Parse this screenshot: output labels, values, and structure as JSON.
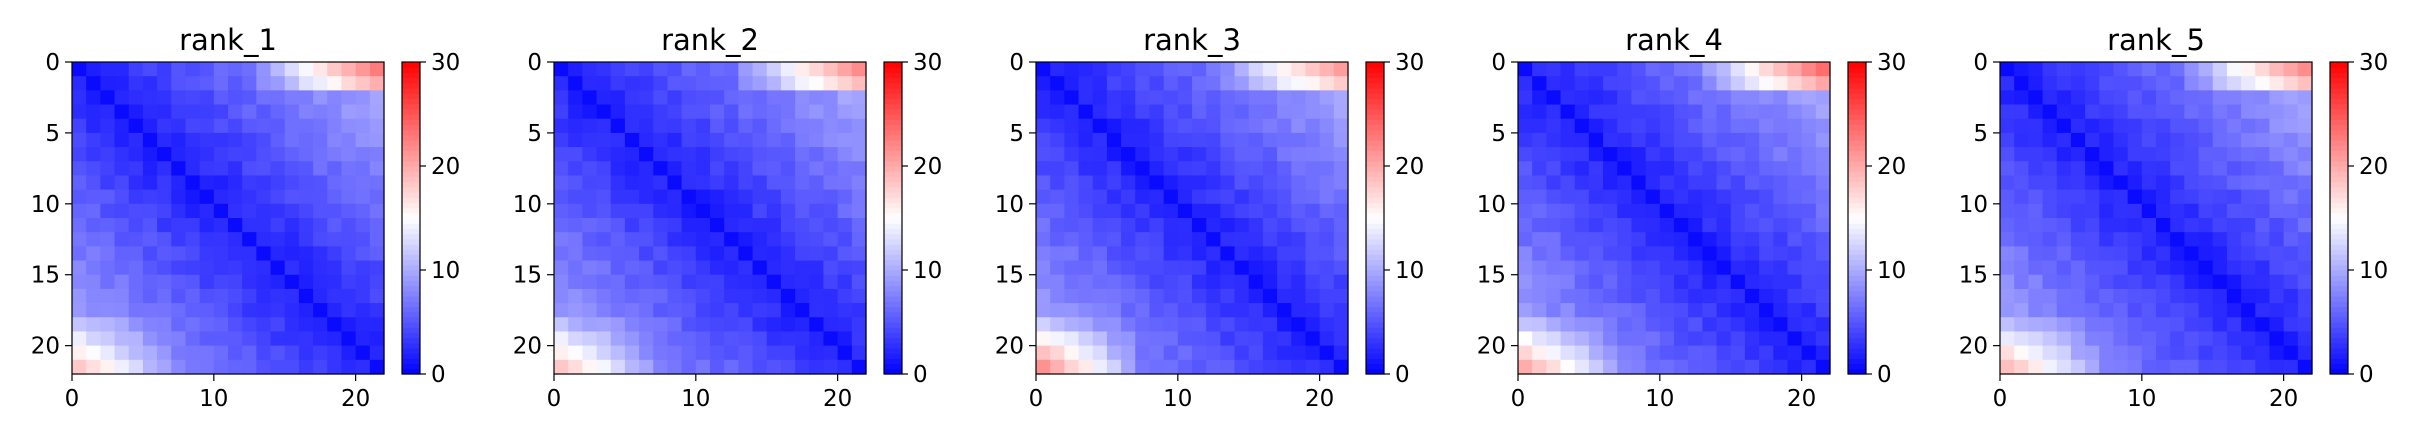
{
  "chart_data": [
    {
      "type": "heatmap",
      "title": "rank_1",
      "size": 22,
      "xticks": [
        0,
        10,
        20
      ],
      "yticks": [
        0,
        5,
        10,
        15,
        20
      ],
      "colorbar": {
        "ticks": [
          0,
          10,
          20,
          30
        ],
        "range": [
          0,
          30
        ],
        "cmap": "bwr"
      },
      "seed": 11,
      "edge": {
        "top_right": 24,
        "bottom_left": 20
      }
    },
    {
      "type": "heatmap",
      "title": "rank_2",
      "size": 22,
      "xticks": [
        0,
        10,
        20
      ],
      "yticks": [
        0,
        5,
        10,
        15,
        20
      ],
      "colorbar": {
        "ticks": [
          0,
          10,
          20,
          30
        ],
        "range": [
          0,
          30
        ],
        "cmap": "bwr"
      },
      "seed": 23,
      "edge": {
        "top_right": 23,
        "bottom_left": 20
      }
    },
    {
      "type": "heatmap",
      "title": "rank_3",
      "size": 22,
      "xticks": [
        0,
        10,
        20
      ],
      "yticks": [
        0,
        5,
        10,
        15,
        20
      ],
      "colorbar": {
        "ticks": [
          0,
          10,
          20,
          30
        ],
        "range": [
          0,
          30
        ],
        "cmap": "bwr"
      },
      "seed": 37,
      "edge": {
        "top_right": 22,
        "bottom_left": 24
      }
    },
    {
      "type": "heatmap",
      "title": "rank_4",
      "size": 22,
      "xticks": [
        0,
        10,
        20
      ],
      "yticks": [
        0,
        5,
        10,
        15,
        20
      ],
      "colorbar": {
        "ticks": [
          0,
          10,
          20,
          30
        ],
        "range": [
          0,
          30
        ],
        "cmap": "bwr"
      },
      "seed": 41,
      "edge": {
        "top_right": 25,
        "bottom_left": 22
      }
    },
    {
      "type": "heatmap",
      "title": "rank_5",
      "size": 22,
      "xticks": [
        0,
        10,
        20
      ],
      "yticks": [
        0,
        5,
        10,
        15,
        20
      ],
      "colorbar": {
        "ticks": [
          0,
          10,
          20,
          30
        ],
        "range": [
          0,
          30
        ],
        "cmap": "bwr"
      },
      "seed": 53,
      "edge": {
        "top_right": 23,
        "bottom_left": 21
      }
    }
  ]
}
